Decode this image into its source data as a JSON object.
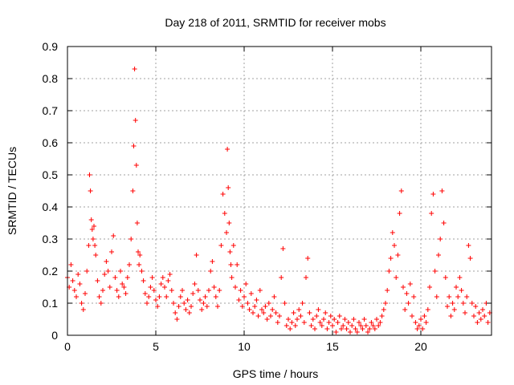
{
  "chart_data": {
    "type": "scatter",
    "title": "Day 218 of 2011, SRMTID for receiver mobs",
    "xlabel": "GPS time / hours",
    "ylabel": "SRMTID / TECUs",
    "xlim": [
      0,
      24
    ],
    "ylim": [
      0,
      0.9
    ],
    "xticks": [
      0,
      5,
      10,
      15,
      20
    ],
    "xtick_labels": [
      "0",
      "5",
      "10",
      "15",
      "20"
    ],
    "yticks": [
      0,
      0.1,
      0.2,
      0.3,
      0.4,
      0.5,
      0.6,
      0.7,
      0.8,
      0.9
    ],
    "ytick_labels": [
      "0",
      "0.1",
      "0.2",
      "0.3",
      "0.4",
      "0.5",
      "0.6",
      "0.7",
      "0.8",
      "0.9"
    ],
    "grid": true,
    "marker": "plus",
    "series": [
      {
        "name": "SRMTID",
        "color": "#ff0000",
        "x": [
          0.0,
          0.1,
          0.2,
          0.3,
          0.4,
          0.5,
          0.6,
          0.7,
          0.8,
          0.9,
          1.0,
          1.1,
          1.2,
          1.25,
          1.3,
          1.35,
          1.4,
          1.45,
          1.5,
          1.55,
          1.6,
          1.7,
          1.8,
          1.9,
          2.0,
          2.1,
          2.2,
          2.3,
          2.4,
          2.5,
          2.6,
          2.7,
          2.8,
          2.9,
          3.0,
          3.1,
          3.2,
          3.3,
          3.4,
          3.5,
          3.6,
          3.7,
          3.75,
          3.8,
          3.85,
          3.9,
          3.95,
          4.0,
          4.05,
          4.1,
          4.2,
          4.3,
          4.4,
          4.5,
          4.6,
          4.7,
          4.8,
          4.9,
          5.0,
          5.1,
          5.2,
          5.3,
          5.4,
          5.5,
          5.6,
          5.7,
          5.8,
          5.9,
          6.0,
          6.1,
          6.2,
          6.3,
          6.4,
          6.5,
          6.6,
          6.7,
          6.8,
          6.9,
          7.0,
          7.1,
          7.2,
          7.3,
          7.4,
          7.5,
          7.6,
          7.7,
          7.8,
          7.9,
          8.0,
          8.1,
          8.2,
          8.3,
          8.4,
          8.5,
          8.6,
          8.7,
          8.8,
          8.9,
          9.0,
          9.05,
          9.1,
          9.15,
          9.2,
          9.25,
          9.3,
          9.4,
          9.5,
          9.6,
          9.7,
          9.8,
          9.9,
          10.0,
          10.1,
          10.2,
          10.3,
          10.4,
          10.5,
          10.6,
          10.7,
          10.8,
          10.9,
          11.0,
          11.1,
          11.2,
          11.3,
          11.4,
          11.5,
          11.6,
          11.7,
          11.8,
          11.9,
          12.0,
          12.1,
          12.2,
          12.3,
          12.4,
          12.5,
          12.6,
          12.7,
          12.8,
          12.9,
          13.0,
          13.1,
          13.2,
          13.3,
          13.4,
          13.5,
          13.6,
          13.7,
          13.8,
          13.9,
          14.0,
          14.1,
          14.2,
          14.3,
          14.4,
          14.5,
          14.6,
          14.7,
          14.8,
          14.9,
          15.0,
          15.1,
          15.2,
          15.3,
          15.4,
          15.5,
          15.6,
          15.7,
          15.8,
          15.9,
          16.0,
          16.1,
          16.2,
          16.3,
          16.4,
          16.5,
          16.6,
          16.7,
          16.8,
          16.9,
          17.0,
          17.1,
          17.2,
          17.3,
          17.4,
          17.5,
          17.6,
          17.7,
          17.8,
          17.9,
          18.0,
          18.1,
          18.2,
          18.3,
          18.4,
          18.5,
          18.6,
          18.7,
          18.8,
          18.9,
          19.0,
          19.1,
          19.2,
          19.3,
          19.4,
          19.5,
          19.6,
          19.7,
          19.8,
          19.9,
          20.0,
          20.1,
          20.2,
          20.3,
          20.4,
          20.5,
          20.6,
          20.7,
          20.8,
          20.9,
          21.0,
          21.1,
          21.2,
          21.3,
          21.4,
          21.5,
          21.6,
          21.7,
          21.8,
          21.9,
          22.0,
          22.1,
          22.2,
          22.3,
          22.4,
          22.5,
          22.6,
          22.7,
          22.8,
          22.9,
          23.0,
          23.1,
          23.2,
          23.3,
          23.4,
          23.5,
          23.6,
          23.7,
          23.8,
          23.9
        ],
        "y": [
          0.18,
          0.15,
          0.22,
          0.17,
          0.14,
          0.12,
          0.19,
          0.16,
          0.1,
          0.08,
          0.13,
          0.2,
          0.28,
          0.5,
          0.45,
          0.36,
          0.33,
          0.3,
          0.34,
          0.28,
          0.25,
          0.17,
          0.12,
          0.1,
          0.14,
          0.19,
          0.23,
          0.2,
          0.15,
          0.26,
          0.31,
          0.18,
          0.14,
          0.12,
          0.2,
          0.16,
          0.15,
          0.13,
          0.18,
          0.22,
          0.3,
          0.45,
          0.59,
          0.83,
          0.67,
          0.53,
          0.35,
          0.26,
          0.22,
          0.25,
          0.2,
          0.17,
          0.13,
          0.1,
          0.12,
          0.15,
          0.18,
          0.14,
          0.11,
          0.09,
          0.12,
          0.16,
          0.18,
          0.15,
          0.12,
          0.17,
          0.19,
          0.14,
          0.1,
          0.07,
          0.05,
          0.09,
          0.12,
          0.14,
          0.1,
          0.08,
          0.11,
          0.07,
          0.09,
          0.13,
          0.16,
          0.25,
          0.14,
          0.11,
          0.08,
          0.1,
          0.12,
          0.09,
          0.14,
          0.2,
          0.23,
          0.15,
          0.12,
          0.09,
          0.14,
          0.28,
          0.44,
          0.38,
          0.32,
          0.58,
          0.46,
          0.35,
          0.26,
          0.22,
          0.18,
          0.28,
          0.15,
          0.22,
          0.11,
          0.14,
          0.09,
          0.12,
          0.16,
          0.1,
          0.08,
          0.13,
          0.07,
          0.09,
          0.11,
          0.06,
          0.14,
          0.08,
          0.07,
          0.09,
          0.05,
          0.1,
          0.06,
          0.08,
          0.12,
          0.07,
          0.04,
          0.06,
          0.18,
          0.27,
          0.1,
          0.03,
          0.05,
          0.02,
          0.04,
          0.07,
          0.03,
          0.05,
          0.08,
          0.06,
          0.1,
          0.04,
          0.18,
          0.24,
          0.07,
          0.03,
          0.05,
          0.02,
          0.06,
          0.08,
          0.04,
          0.03,
          0.05,
          0.07,
          0.02,
          0.04,
          0.06,
          0.03,
          0.05,
          0.01,
          0.04,
          0.06,
          0.02,
          0.03,
          0.05,
          0.02,
          0.04,
          0.01,
          0.03,
          0.05,
          0.02,
          0.01,
          0.04,
          0.03,
          0.02,
          0.05,
          0.03,
          0.01,
          0.02,
          0.04,
          0.03,
          0.02,
          0.05,
          0.03,
          0.04,
          0.06,
          0.08,
          0.1,
          0.14,
          0.2,
          0.24,
          0.32,
          0.28,
          0.18,
          0.25,
          0.38,
          0.45,
          0.15,
          0.08,
          0.13,
          0.1,
          0.16,
          0.06,
          0.12,
          0.04,
          0.02,
          0.03,
          0.05,
          0.02,
          0.06,
          0.04,
          0.08,
          0.15,
          0.38,
          0.44,
          0.2,
          0.12,
          0.25,
          0.3,
          0.45,
          0.35,
          0.18,
          0.09,
          0.12,
          0.06,
          0.1,
          0.08,
          0.15,
          0.12,
          0.18,
          0.14,
          0.1,
          0.07,
          0.12,
          0.28,
          0.24,
          0.1,
          0.06,
          0.09,
          0.04,
          0.07,
          0.05,
          0.08,
          0.06,
          0.1,
          0.04,
          0.07
        ]
      }
    ]
  }
}
